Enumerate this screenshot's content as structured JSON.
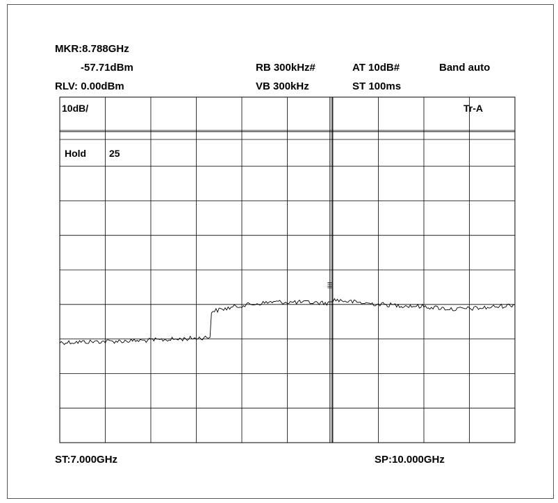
{
  "header": {
    "marker_freq": "MKR:8.788GHz",
    "marker_level": "-57.71dBm",
    "ref_level": "RLV: 0.00dBm",
    "rbw": "RB 300kHz#",
    "vbw": "VB 300kHz",
    "attenuation": "AT 10dB#",
    "sweep_time": "ST 100ms",
    "band": "Band auto"
  },
  "grid_labels": {
    "scale": "10dB/",
    "trace": "Tr-A",
    "hold_label": "Hold",
    "hold_value": "25"
  },
  "footer": {
    "start_freq": "ST:7.000GHz",
    "stop_freq": "SP:10.000GHz"
  },
  "chart_data": {
    "type": "line",
    "xlim": [
      7.0,
      10.0
    ],
    "ylim": [
      -100,
      0
    ],
    "grid": true,
    "marker": {
      "x": 8.788,
      "y": -57.71
    },
    "series": [
      {
        "x": [
          7.0,
          7.2,
          7.4,
          7.6,
          7.8,
          7.99,
          8.0,
          8.2,
          8.4,
          8.6,
          8.78,
          8.8,
          8.9,
          9.0,
          9.2,
          9.4,
          9.6,
          9.8,
          10.0
        ],
        "y": [
          -71.0,
          -70.8,
          -70.6,
          -70.4,
          -70.0,
          -69.5,
          -62.0,
          -60.3,
          -59.3,
          -59.4,
          -59.6,
          -58.6,
          -59.1,
          -59.6,
          -60.2,
          -60.6,
          -61.4,
          -61.0,
          -60.1
        ]
      }
    ]
  }
}
